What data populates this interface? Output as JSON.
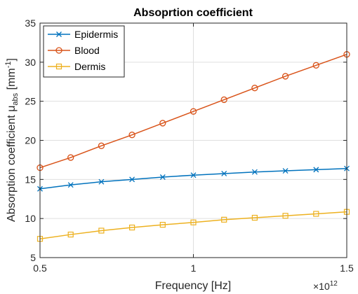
{
  "chart_data": {
    "type": "line",
    "title": "Absoprtion coefficient",
    "xlabel": "Frequency [Hz]",
    "ylabel": {
      "main": "Absorption coefficient μ",
      "subscript": "abs",
      "unit_open": " [mm",
      "unit_sup": "-1",
      "unit_close": "]"
    },
    "x_exponent_label": {
      "base": "×10",
      "power": "12"
    },
    "xlim": [
      0.5,
      1.5
    ],
    "ylim": [
      5,
      35
    ],
    "xticks": [
      0.5,
      1,
      1.5
    ],
    "xtick_labels": [
      "0.5",
      "1",
      "1.5"
    ],
    "yticks": [
      5,
      10,
      15,
      20,
      25,
      30,
      35
    ],
    "ytick_labels": [
      "5",
      "10",
      "15",
      "20",
      "25",
      "30",
      "35"
    ],
    "grid": true,
    "legend_position": "top-left",
    "x": [
      0.5,
      0.6,
      0.7,
      0.8,
      0.9,
      1.0,
      1.1,
      1.2,
      1.3,
      1.4,
      1.5
    ],
    "series": [
      {
        "name": "Epidermis",
        "color": "#0072bd",
        "marker": "x",
        "values": [
          13.8,
          14.3,
          14.7,
          15.0,
          15.3,
          15.55,
          15.75,
          15.95,
          16.1,
          16.25,
          16.4
        ]
      },
      {
        "name": "Blood",
        "color": "#d95319",
        "marker": "circle",
        "values": [
          16.5,
          17.8,
          19.3,
          20.7,
          22.2,
          23.7,
          25.2,
          26.7,
          28.2,
          29.6,
          31.0
        ]
      },
      {
        "name": "Dermis",
        "color": "#edb120",
        "marker": "square",
        "values": [
          7.4,
          7.95,
          8.45,
          8.85,
          9.2,
          9.5,
          9.85,
          10.1,
          10.35,
          10.6,
          10.85
        ]
      }
    ]
  }
}
